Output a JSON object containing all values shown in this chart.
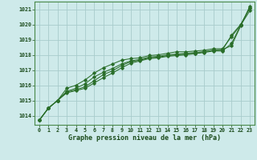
{
  "title": "Graphe pression niveau de la mer (hPa)",
  "xlabel_hours": [
    0,
    1,
    2,
    3,
    4,
    5,
    6,
    7,
    8,
    9,
    10,
    11,
    12,
    13,
    14,
    15,
    16,
    17,
    18,
    19,
    20,
    21,
    22,
    23
  ],
  "ylim": [
    1013.4,
    1021.5
  ],
  "yticks": [
    1014,
    1015,
    1016,
    1017,
    1018,
    1019,
    1020,
    1021
  ],
  "bg_color": "#ceeaea",
  "grid_color": "#a8cccc",
  "line_color": "#2a6e2a",
  "marker_color": "#2a6e2a",
  "line1": [
    1013.7,
    1014.5,
    1015.0,
    1015.55,
    1015.7,
    1015.9,
    1016.3,
    1016.7,
    1016.95,
    1017.3,
    1017.55,
    1017.65,
    1017.8,
    1017.85,
    1017.95,
    1018.0,
    1018.05,
    1018.1,
    1018.2,
    1018.3,
    1018.3,
    1019.3,
    1020.0,
    1021.1
  ],
  "line2": [
    1013.7,
    1014.5,
    1015.0,
    1015.6,
    1015.8,
    1016.1,
    1016.55,
    1016.85,
    1017.1,
    1017.4,
    1017.6,
    1017.7,
    1017.85,
    1017.9,
    1018.0,
    1018.05,
    1018.1,
    1018.15,
    1018.2,
    1018.3,
    1018.35,
    1018.6,
    1019.9,
    1021.2
  ],
  "line3": [
    1013.7,
    1014.5,
    1015.0,
    1015.5,
    1015.65,
    1015.8,
    1016.15,
    1016.5,
    1016.8,
    1017.15,
    1017.45,
    1017.6,
    1017.75,
    1017.8,
    1017.9,
    1017.95,
    1018.0,
    1018.08,
    1018.15,
    1018.25,
    1018.25,
    1018.75,
    1019.95,
    1021.1
  ],
  "line4": [
    1013.7,
    1014.5,
    1015.0,
    1015.8,
    1016.0,
    1016.35,
    1016.8,
    1017.15,
    1017.4,
    1017.65,
    1017.75,
    1017.8,
    1017.95,
    1018.0,
    1018.1,
    1018.2,
    1018.2,
    1018.25,
    1018.3,
    1018.4,
    1018.4,
    1019.2,
    1019.95,
    1020.9
  ],
  "spine_color": "#4a8a4a",
  "title_fontsize": 6.0,
  "tick_fontsize": 4.8
}
